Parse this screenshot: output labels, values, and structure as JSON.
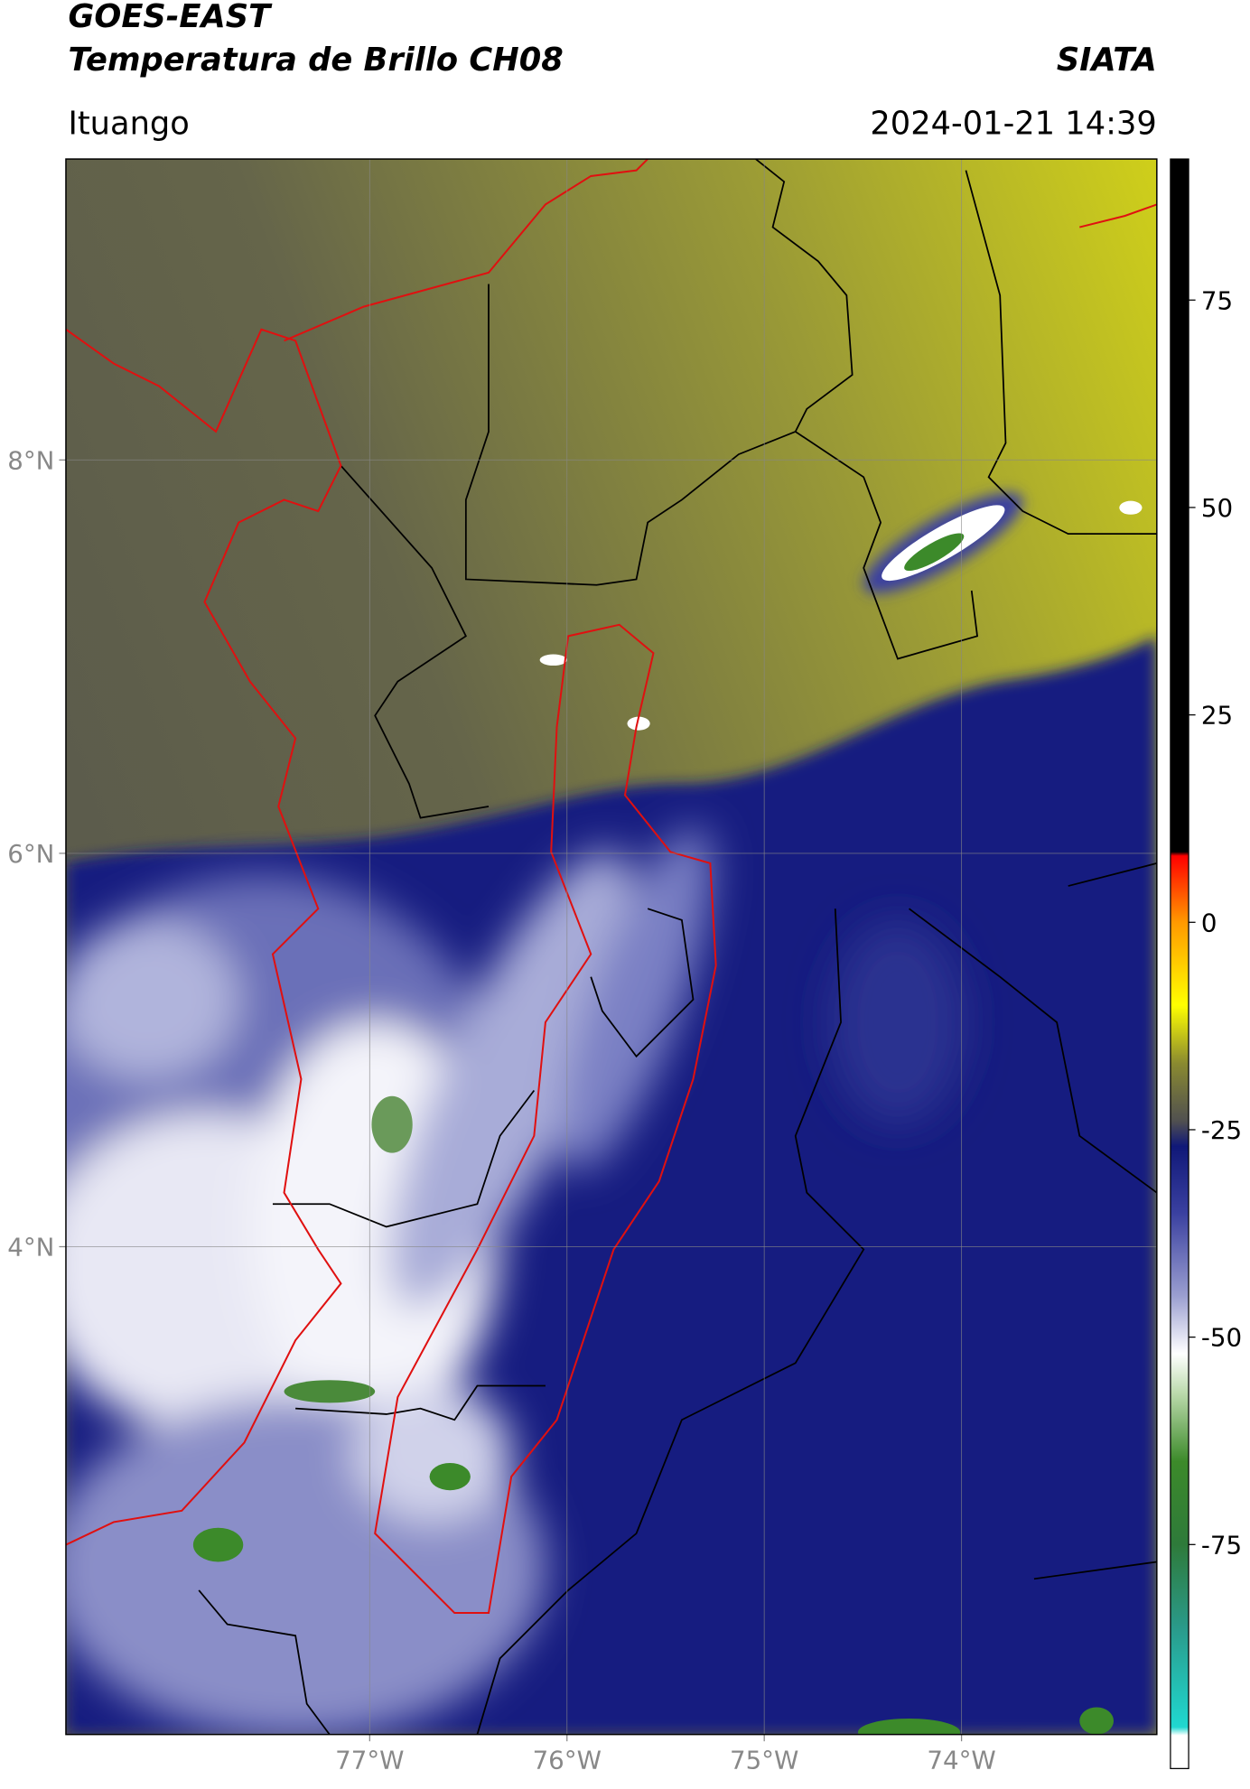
{
  "header": {
    "title": "GOES-EAST",
    "subtitle": "Temperatura de Brillo CH08",
    "source": "SIATA",
    "location": "Ituango",
    "datetime": "2024-01-21 14:39"
  },
  "map": {
    "lon_extent": [
      -78.54,
      -73.01
    ],
    "lat_extent": [
      1.52,
      9.53
    ],
    "lon_ticks": [
      {
        "value": -77,
        "label": "77°W"
      },
      {
        "value": -76,
        "label": "76°W"
      },
      {
        "value": -75,
        "label": "75°W"
      },
      {
        "value": -74,
        "label": "74°W"
      }
    ],
    "lat_ticks": [
      {
        "value": 8,
        "label": "8°N"
      },
      {
        "value": 6,
        "label": "6°N"
      },
      {
        "value": 4,
        "label": "4°N"
      }
    ]
  },
  "colorbar": {
    "range": [
      -102,
      92
    ],
    "ticks": [
      75,
      50,
      25,
      0,
      -25,
      -50,
      -75
    ],
    "colormap": [
      {
        "value": -102,
        "color": "#ffffff"
      },
      {
        "value": -98,
        "color": "#ffffff"
      },
      {
        "value": -97,
        "color": "#20d8d0"
      },
      {
        "value": -85,
        "color": "#2a9a8a"
      },
      {
        "value": -75,
        "color": "#2e7a3a"
      },
      {
        "value": -65,
        "color": "#3c8a2a"
      },
      {
        "value": -57,
        "color": "#b8d8a8"
      },
      {
        "value": -52,
        "color": "#ffffff"
      },
      {
        "value": -45,
        "color": "#9a9ed0"
      },
      {
        "value": -35,
        "color": "#3a40a0"
      },
      {
        "value": -27,
        "color": "#101878"
      },
      {
        "value": -24,
        "color": "#505050"
      },
      {
        "value": -17,
        "color": "#8a8a30"
      },
      {
        "value": -10,
        "color": "#ffff00"
      },
      {
        "value": 0,
        "color": "#ff9900"
      },
      {
        "value": 8,
        "color": "#ff0000"
      },
      {
        "value": 8.5,
        "color": "#000000"
      },
      {
        "value": 92,
        "color": "#000000"
      }
    ]
  }
}
